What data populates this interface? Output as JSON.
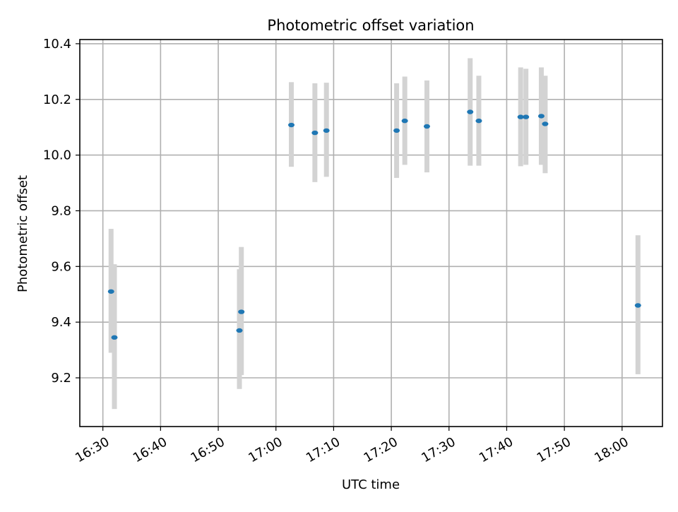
{
  "chart_data": {
    "type": "scatter",
    "title": "Photometric offset variation",
    "xlabel": "UTC time",
    "ylabel": "Photometric offset",
    "xlim": [
      "16:26:00",
      "18:07:00"
    ],
    "ylim": [
      9.025,
      10.415
    ],
    "x_ticks": [
      "16:30",
      "16:40",
      "16:50",
      "17:00",
      "17:10",
      "17:20",
      "17:30",
      "17:40",
      "17:50",
      "18:00"
    ],
    "y_ticks": [
      "9.2",
      "9.4",
      "9.6",
      "9.8",
      "10.0",
      "10.2",
      "10.4"
    ],
    "grid": true,
    "marker_color": "#1f77b4",
    "errorbar_color": "#d3d3d3",
    "points": [
      {
        "time": "16:31:25",
        "y": 9.51,
        "y_low": 9.29,
        "y_high": 9.735
      },
      {
        "time": "16:32:00",
        "y": 9.345,
        "y_low": 9.088,
        "y_high": 9.608
      },
      {
        "time": "16:53:40",
        "y": 9.37,
        "y_low": 9.16,
        "y_high": 9.59
      },
      {
        "time": "16:54:00",
        "y": 9.437,
        "y_low": 9.21,
        "y_high": 9.67
      },
      {
        "time": "17:02:40",
        "y": 10.108,
        "y_low": 9.958,
        "y_high": 10.262
      },
      {
        "time": "17:06:45",
        "y": 10.08,
        "y_low": 9.903,
        "y_high": 10.258
      },
      {
        "time": "17:08:45",
        "y": 10.088,
        "y_low": 9.922,
        "y_high": 10.26
      },
      {
        "time": "17:20:55",
        "y": 10.088,
        "y_low": 9.918,
        "y_high": 10.258
      },
      {
        "time": "17:22:20",
        "y": 10.123,
        "y_low": 9.965,
        "y_high": 10.282
      },
      {
        "time": "17:26:10",
        "y": 10.103,
        "y_low": 9.938,
        "y_high": 10.268
      },
      {
        "time": "17:33:40",
        "y": 10.155,
        "y_low": 9.962,
        "y_high": 10.348
      },
      {
        "time": "17:35:10",
        "y": 10.123,
        "y_low": 9.962,
        "y_high": 10.285
      },
      {
        "time": "17:42:25",
        "y": 10.137,
        "y_low": 9.96,
        "y_high": 10.315
      },
      {
        "time": "17:43:20",
        "y": 10.137,
        "y_low": 9.965,
        "y_high": 10.31
      },
      {
        "time": "17:46:00",
        "y": 10.14,
        "y_low": 9.965,
        "y_high": 10.315
      },
      {
        "time": "17:46:40",
        "y": 10.112,
        "y_low": 9.935,
        "y_high": 10.285
      },
      {
        "time": "18:02:45",
        "y": 9.46,
        "y_low": 9.213,
        "y_high": 9.712
      }
    ]
  }
}
